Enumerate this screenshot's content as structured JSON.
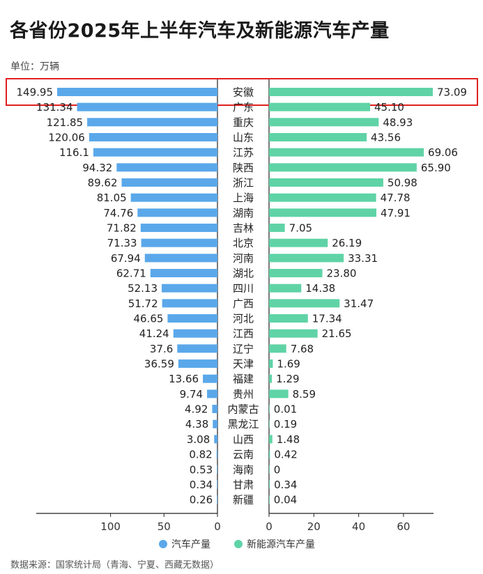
{
  "title": "各省份2025年上半年汽车及新能源汽车产量",
  "unit": "单位：万辆",
  "source": "数据来源：国家统计局（青海、宁夏、西藏无数据）",
  "colors": {
    "left": "#5aa8ea",
    "right": "#5fd3a6",
    "highlight": "#e02020"
  },
  "chart_data": {
    "type": "bar",
    "categories": [
      "安徽",
      "广东",
      "重庆",
      "山东",
      "江苏",
      "陕西",
      "浙江",
      "上海",
      "湖南",
      "吉林",
      "北京",
      "河南",
      "湖北",
      "四川",
      "广西",
      "河北",
      "江西",
      "辽宁",
      "天津",
      "福建",
      "贵州",
      "内蒙古",
      "黑龙江",
      "山西",
      "云南",
      "海南",
      "甘肃",
      "新疆"
    ],
    "series": [
      {
        "name": "汽车产量",
        "values": [
          "149.95",
          "131.34",
          "121.85",
          "120.06",
          "116.1",
          "94.32",
          "89.62",
          "81.05",
          "74.76",
          "71.82",
          "71.33",
          "67.94",
          "62.71",
          "52.13",
          "51.72",
          "46.65",
          "41.24",
          "37.6",
          "36.59",
          "13.66",
          "9.74",
          "4.92",
          "4.38",
          "3.08",
          "0.82",
          "0.53",
          "0.34",
          "0.26"
        ]
      },
      {
        "name": "新能源汽车产量",
        "values": [
          "73.09",
          "45.10",
          "48.93",
          "43.56",
          "69.06",
          "65.90",
          "50.98",
          "47.78",
          "47.91",
          "7.05",
          "26.19",
          "33.31",
          "23.80",
          "14.38",
          "31.47",
          "17.34",
          "21.65",
          "7.68",
          "1.69",
          "1.29",
          "8.59",
          "0.01",
          "0.19",
          "1.48",
          "0.42",
          "0",
          "0.34",
          "0.04"
        ]
      }
    ],
    "left_axis": {
      "ticks": [
        "100",
        "50",
        "0"
      ],
      "max": 150,
      "direction": "reversed"
    },
    "right_axis": {
      "ticks": [
        "0",
        "20",
        "40",
        "60"
      ],
      "max": 73.09
    },
    "highlight_category": "安徽",
    "legend_position": "bottom-center"
  }
}
